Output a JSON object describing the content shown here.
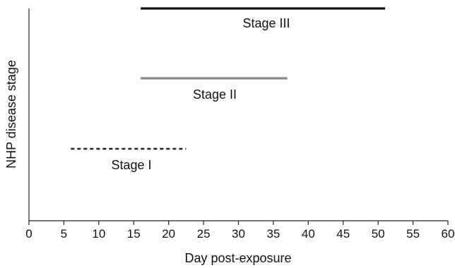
{
  "chart_data": {
    "type": "gantt",
    "title": "",
    "xlabel": "Day post-exposure",
    "ylabel": "NHP disease stage",
    "xlim": [
      0,
      60
    ],
    "x_ticks": [
      "0",
      "5",
      "10",
      "15",
      "20",
      "25",
      "30",
      "35",
      "40",
      "45",
      "50",
      "55",
      "60"
    ],
    "grid": false,
    "series": [
      {
        "name": "Stage I",
        "start": 6,
        "end": 22.5,
        "style": "dashed",
        "color": "#222222"
      },
      {
        "name": "Stage II",
        "start": 16,
        "end": 37,
        "style": "solid",
        "color": "#888888"
      },
      {
        "name": "Stage III",
        "start": 16,
        "end": 51,
        "style": "solid",
        "color": "#111111"
      }
    ]
  }
}
